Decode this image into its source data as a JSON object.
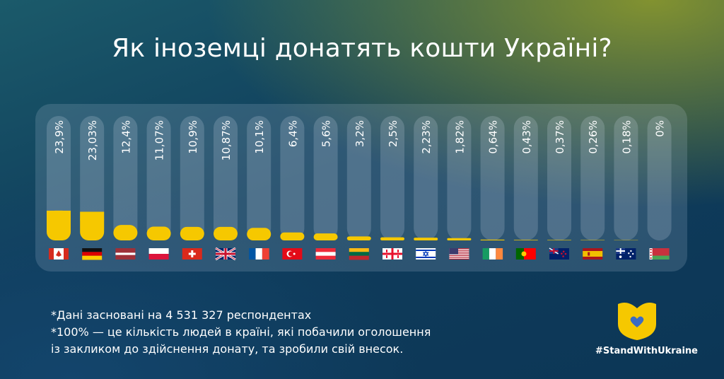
{
  "title": "Як іноземці донатять кошти Україні?",
  "chart_data": {
    "type": "bar",
    "categories": [
      "Canada",
      "Germany",
      "Latvia",
      "Poland",
      "Switzerland",
      "United Kingdom",
      "France",
      "Turkey",
      "Austria",
      "Lithuania",
      "Georgia",
      "Israel",
      "USA",
      "Ireland",
      "Portugal",
      "New Zealand",
      "Spain",
      "Australia",
      "Belarus"
    ],
    "values": [
      23.9,
      23.03,
      12.4,
      11.07,
      10.9,
      10.87,
      10.1,
      6.4,
      5.6,
      3.2,
      2.5,
      2.23,
      1.82,
      0.64,
      0.43,
      0.37,
      0.26,
      0.18,
      0
    ],
    "labels": [
      "23,9%",
      "23,03%",
      "12,4%",
      "11,07%",
      "10,9%",
      "10,87%",
      "10,1%",
      "6,4%",
      "5,6%",
      "3,2%",
      "2,5%",
      "2,23%",
      "1,82%",
      "0,64%",
      "0,43%",
      "0,37%",
      "0,26%",
      "0,18%",
      "0%"
    ],
    "flags": [
      "ca",
      "de",
      "lv",
      "pl",
      "ch",
      "gb",
      "fr",
      "tr",
      "at",
      "lt",
      "ge",
      "il",
      "us",
      "ie",
      "pt",
      "nz",
      "es",
      "au",
      "by"
    ],
    "ylim": [
      0,
      100
    ],
    "bar_color": "#f6c800",
    "track_color": "#d8e3ee"
  },
  "footnotes": [
    "*Дані засновані на 4 531 327 респондентах",
    "*100% — це кількість людей в країні, які побачили оголошення",
    "із закликом до здійснення донату, та зробили свій внесок."
  ],
  "hashtag": "#StandWithUkraine",
  "colors": {
    "accent": "#f6c800",
    "logo_heart": "#3b6bc4"
  }
}
